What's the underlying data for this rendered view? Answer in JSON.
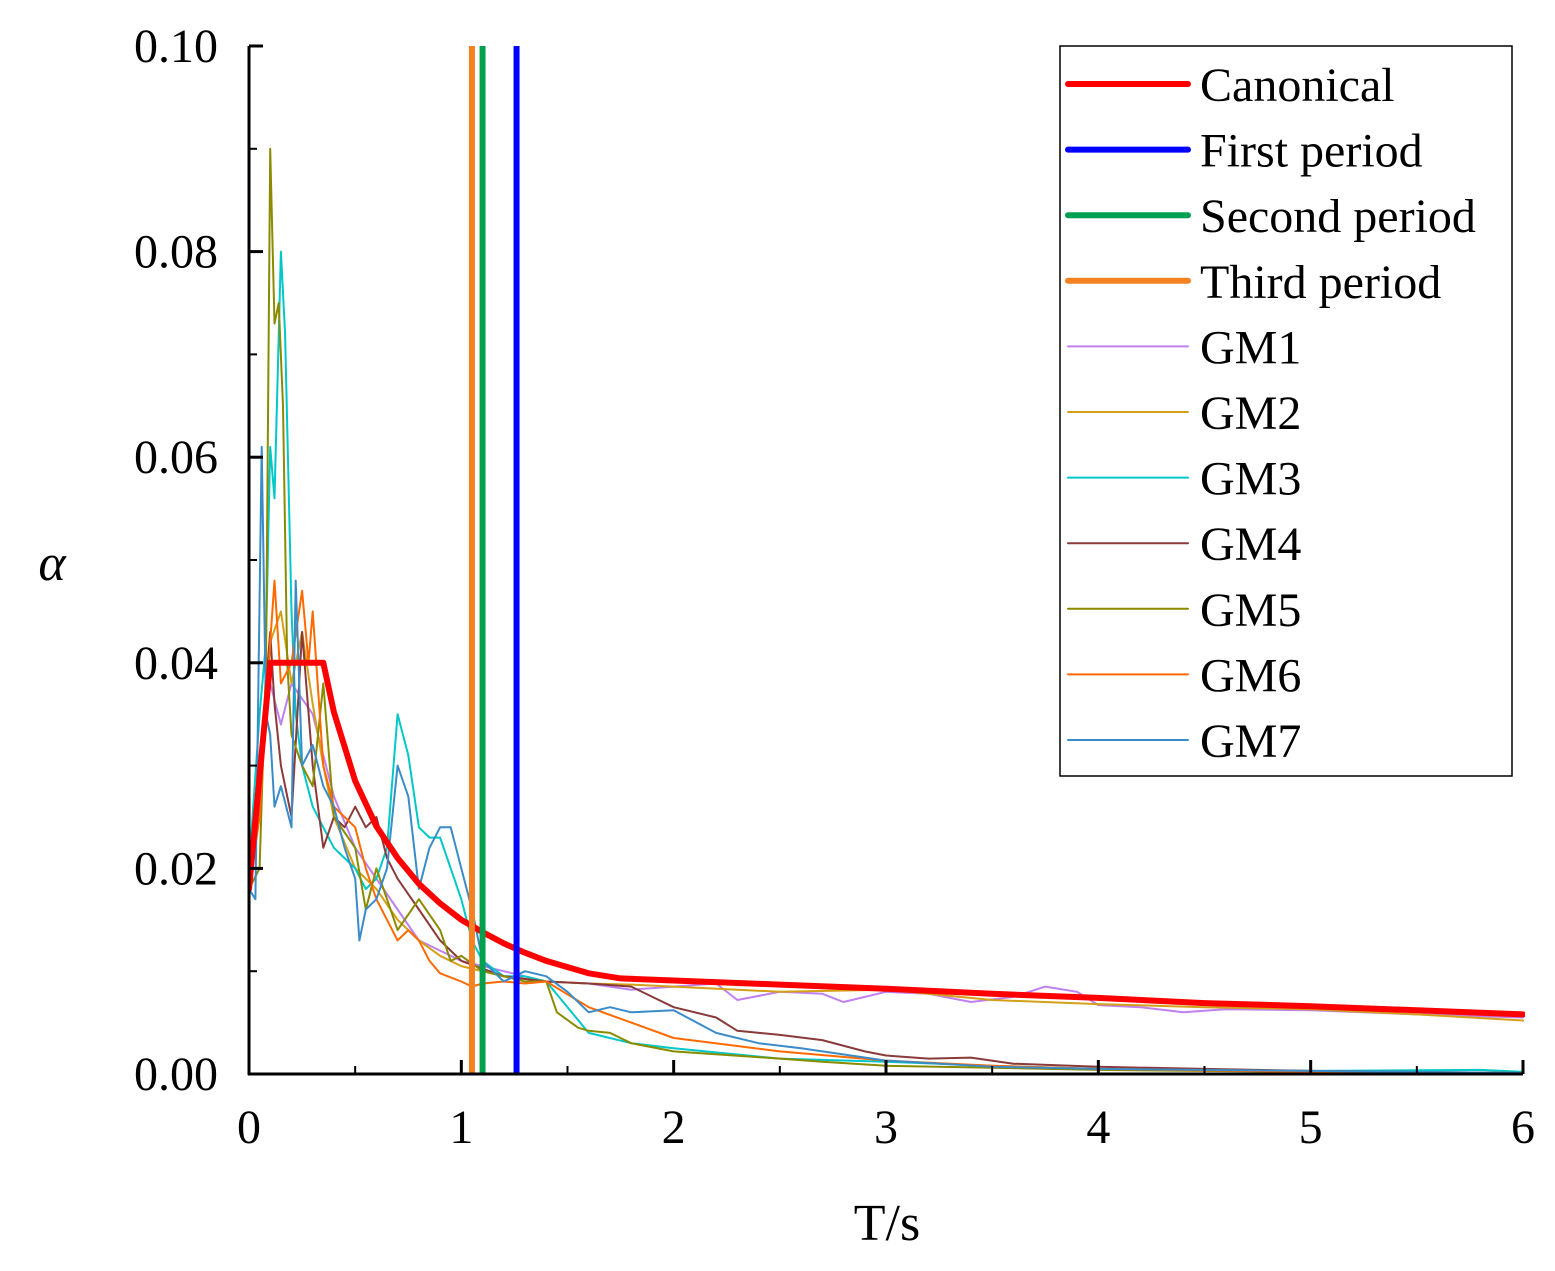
{
  "chart_data": {
    "type": "line",
    "xlabel": "T/s",
    "ylabel": "α",
    "xlim": [
      0,
      6
    ],
    "ylim": [
      0,
      0.1
    ],
    "x_ticks": [
      "0",
      "1",
      "2",
      "3",
      "4",
      "5",
      "6"
    ],
    "y_ticks": [
      "0.00",
      "0.02",
      "0.04",
      "0.06",
      "0.08",
      "0.10"
    ],
    "grid": false,
    "legend_position": "top-right",
    "series": [
      {
        "name": "Canonical",
        "color": "#ff0000",
        "width": 6,
        "points": [
          [
            0,
            0.018
          ],
          [
            0.1,
            0.04
          ],
          [
            0.35,
            0.04
          ],
          [
            0.4,
            0.0352
          ],
          [
            0.5,
            0.0285
          ],
          [
            0.6,
            0.0241
          ],
          [
            0.7,
            0.021
          ],
          [
            0.8,
            0.0185
          ],
          [
            0.9,
            0.0166
          ],
          [
            1.0,
            0.015
          ],
          [
            1.1,
            0.0138
          ],
          [
            1.2,
            0.0127
          ],
          [
            1.3,
            0.0118
          ],
          [
            1.4,
            0.011
          ],
          [
            1.5,
            0.0104
          ],
          [
            1.6,
            0.0098
          ],
          [
            1.75,
            0.0093
          ],
          [
            2,
            0.0091
          ],
          [
            2.5,
            0.0087
          ],
          [
            3,
            0.0083
          ],
          [
            3.5,
            0.0078
          ],
          [
            4,
            0.0074
          ],
          [
            4.5,
            0.0069
          ],
          [
            5,
            0.0066
          ],
          [
            5.5,
            0.0062
          ],
          [
            6,
            0.0058
          ]
        ]
      },
      {
        "name": "First period",
        "color": "#0000ff",
        "width": 6,
        "vline": 1.26
      },
      {
        "name": "Second period",
        "color": "#00a050",
        "width": 6,
        "vline": 1.1
      },
      {
        "name": "Third period",
        "color": "#f58220",
        "width": 6,
        "vline": 1.05
      },
      {
        "name": "GM1",
        "color": "#c080f0",
        "width": 2,
        "points": [
          [
            0,
            0.02
          ],
          [
            0.05,
            0.03
          ],
          [
            0.1,
            0.038
          ],
          [
            0.15,
            0.034
          ],
          [
            0.2,
            0.038
          ],
          [
            0.3,
            0.035
          ],
          [
            0.4,
            0.027
          ],
          [
            0.5,
            0.022
          ],
          [
            0.6,
            0.019
          ],
          [
            0.7,
            0.016
          ],
          [
            0.8,
            0.013
          ],
          [
            0.9,
            0.012
          ],
          [
            1.0,
            0.011
          ],
          [
            1.2,
            0.01
          ],
          [
            1.4,
            0.009
          ],
          [
            1.6,
            0.0088
          ],
          [
            1.8,
            0.0082
          ],
          [
            2,
            0.0085
          ],
          [
            2.2,
            0.0088
          ],
          [
            2.3,
            0.0072
          ],
          [
            2.5,
            0.008
          ],
          [
            2.7,
            0.0078
          ],
          [
            2.8,
            0.007
          ],
          [
            3,
            0.008
          ],
          [
            3.2,
            0.0078
          ],
          [
            3.4,
            0.007
          ],
          [
            3.6,
            0.0075
          ],
          [
            3.75,
            0.0085
          ],
          [
            3.9,
            0.008
          ],
          [
            4,
            0.0067
          ],
          [
            4.2,
            0.0065
          ],
          [
            4.4,
            0.006
          ],
          [
            4.6,
            0.0063
          ],
          [
            5,
            0.0062
          ],
          [
            5.5,
            0.0058
          ],
          [
            6,
            0.0055
          ]
        ]
      },
      {
        "name": "GM2",
        "color": "#d4a017",
        "width": 2,
        "points": [
          [
            0,
            0.02
          ],
          [
            0.05,
            0.028
          ],
          [
            0.1,
            0.042
          ],
          [
            0.15,
            0.045
          ],
          [
            0.2,
            0.038
          ],
          [
            0.25,
            0.043
          ],
          [
            0.3,
            0.036
          ],
          [
            0.35,
            0.03
          ],
          [
            0.4,
            0.025
          ],
          [
            0.5,
            0.02
          ],
          [
            0.6,
            0.018
          ],
          [
            0.7,
            0.015
          ],
          [
            0.8,
            0.013
          ],
          [
            0.9,
            0.0115
          ],
          [
            1.0,
            0.0105
          ],
          [
            1.2,
            0.0095
          ],
          [
            1.4,
            0.009
          ],
          [
            1.6,
            0.0088
          ],
          [
            1.8,
            0.0087
          ],
          [
            2,
            0.0085
          ],
          [
            2.5,
            0.008
          ],
          [
            3,
            0.0082
          ],
          [
            3.5,
            0.0072
          ],
          [
            4,
            0.0068
          ],
          [
            4.5,
            0.0065
          ],
          [
            5,
            0.0063
          ],
          [
            5.5,
            0.0058
          ],
          [
            6,
            0.0052
          ]
        ]
      },
      {
        "name": "GM3",
        "color": "#00c8c8",
        "width": 2,
        "points": [
          [
            0,
            0.02
          ],
          [
            0.05,
            0.035
          ],
          [
            0.08,
            0.042
          ],
          [
            0.1,
            0.061
          ],
          [
            0.12,
            0.056
          ],
          [
            0.15,
            0.08
          ],
          [
            0.17,
            0.072
          ],
          [
            0.2,
            0.045
          ],
          [
            0.22,
            0.035
          ],
          [
            0.25,
            0.03
          ],
          [
            0.3,
            0.026
          ],
          [
            0.35,
            0.024
          ],
          [
            0.4,
            0.022
          ],
          [
            0.45,
            0.021
          ],
          [
            0.5,
            0.02
          ],
          [
            0.55,
            0.018
          ],
          [
            0.6,
            0.019
          ],
          [
            0.65,
            0.022
          ],
          [
            0.7,
            0.035
          ],
          [
            0.75,
            0.031
          ],
          [
            0.8,
            0.024
          ],
          [
            0.85,
            0.023
          ],
          [
            0.9,
            0.023
          ],
          [
            1.0,
            0.017
          ],
          [
            1.05,
            0.013
          ],
          [
            1.1,
            0.011
          ],
          [
            1.2,
            0.0095
          ],
          [
            1.3,
            0.0095
          ],
          [
            1.4,
            0.009
          ],
          [
            1.5,
            0.0065
          ],
          [
            1.6,
            0.004
          ],
          [
            1.8,
            0.003
          ],
          [
            2,
            0.0025
          ],
          [
            2.5,
            0.0015
          ],
          [
            3,
            0.0012
          ],
          [
            3.5,
            0.0008
          ],
          [
            4,
            0.0005
          ],
          [
            5,
            0.0003
          ],
          [
            5.8,
            0.0004
          ],
          [
            6,
            0.0002
          ]
        ]
      },
      {
        "name": "GM4",
        "color": "#8b3a3a",
        "width": 2,
        "points": [
          [
            0,
            0.02
          ],
          [
            0.05,
            0.03
          ],
          [
            0.1,
            0.043
          ],
          [
            0.12,
            0.036
          ],
          [
            0.15,
            0.03
          ],
          [
            0.2,
            0.025
          ],
          [
            0.25,
            0.043
          ],
          [
            0.3,
            0.03
          ],
          [
            0.35,
            0.022
          ],
          [
            0.4,
            0.025
          ],
          [
            0.45,
            0.024
          ],
          [
            0.5,
            0.026
          ],
          [
            0.55,
            0.024
          ],
          [
            0.6,
            0.025
          ],
          [
            0.65,
            0.021
          ],
          [
            0.7,
            0.019
          ],
          [
            0.8,
            0.016
          ],
          [
            0.9,
            0.013
          ],
          [
            1.0,
            0.011
          ],
          [
            1.2,
            0.0095
          ],
          [
            1.4,
            0.009
          ],
          [
            1.6,
            0.0088
          ],
          [
            1.8,
            0.0085
          ],
          [
            1.9,
            0.0075
          ],
          [
            2,
            0.0065
          ],
          [
            2.2,
            0.0055
          ],
          [
            2.3,
            0.0042
          ],
          [
            2.5,
            0.0038
          ],
          [
            2.7,
            0.0033
          ],
          [
            2.9,
            0.0022
          ],
          [
            3,
            0.0018
          ],
          [
            3.2,
            0.0015
          ],
          [
            3.4,
            0.0016
          ],
          [
            3.6,
            0.001
          ],
          [
            4,
            0.0007
          ],
          [
            4.5,
            0.0005
          ],
          [
            5,
            0.0003
          ],
          [
            6,
            0.0001
          ]
        ]
      },
      {
        "name": "GM5",
        "color": "#8b8b00",
        "width": 2,
        "points": [
          [
            0,
            0.018
          ],
          [
            0.05,
            0.02
          ],
          [
            0.08,
            0.04
          ],
          [
            0.1,
            0.09
          ],
          [
            0.12,
            0.073
          ],
          [
            0.14,
            0.075
          ],
          [
            0.16,
            0.065
          ],
          [
            0.18,
            0.04
          ],
          [
            0.2,
            0.033
          ],
          [
            0.25,
            0.03
          ],
          [
            0.3,
            0.028
          ],
          [
            0.35,
            0.038
          ],
          [
            0.4,
            0.025
          ],
          [
            0.5,
            0.022
          ],
          [
            0.55,
            0.016
          ],
          [
            0.6,
            0.02
          ],
          [
            0.7,
            0.014
          ],
          [
            0.8,
            0.017
          ],
          [
            0.9,
            0.014
          ],
          [
            0.95,
            0.011
          ],
          [
            1.0,
            0.0115
          ],
          [
            1.1,
            0.01
          ],
          [
            1.2,
            0.0095
          ],
          [
            1.3,
            0.009
          ],
          [
            1.4,
            0.009
          ],
          [
            1.45,
            0.006
          ],
          [
            1.55,
            0.0045
          ],
          [
            1.6,
            0.0042
          ],
          [
            1.7,
            0.004
          ],
          [
            1.8,
            0.003
          ],
          [
            2,
            0.0022
          ],
          [
            2.5,
            0.0015
          ],
          [
            2.7,
            0.0012
          ],
          [
            3,
            0.0008
          ],
          [
            3.5,
            0.0006
          ],
          [
            4,
            0.0004
          ],
          [
            5,
            0.0002
          ],
          [
            6,
            0.0001
          ]
        ]
      },
      {
        "name": "GM6",
        "color": "#ff6a00",
        "width": 2,
        "points": [
          [
            0,
            0.018
          ],
          [
            0.05,
            0.025
          ],
          [
            0.08,
            0.035
          ],
          [
            0.1,
            0.042
          ],
          [
            0.12,
            0.048
          ],
          [
            0.15,
            0.038
          ],
          [
            0.2,
            0.04
          ],
          [
            0.25,
            0.047
          ],
          [
            0.28,
            0.04
          ],
          [
            0.3,
            0.045
          ],
          [
            0.35,
            0.03
          ],
          [
            0.4,
            0.026
          ],
          [
            0.45,
            0.025
          ],
          [
            0.5,
            0.024
          ],
          [
            0.55,
            0.02
          ],
          [
            0.6,
            0.017
          ],
          [
            0.65,
            0.015
          ],
          [
            0.7,
            0.013
          ],
          [
            0.75,
            0.014
          ],
          [
            0.8,
            0.013
          ],
          [
            0.85,
            0.011
          ],
          [
            0.9,
            0.0098
          ],
          [
            1.0,
            0.009
          ],
          [
            1.05,
            0.0085
          ],
          [
            1.1,
            0.0088
          ],
          [
            1.2,
            0.009
          ],
          [
            1.3,
            0.0088
          ],
          [
            1.4,
            0.009
          ],
          [
            1.6,
            0.0065
          ],
          [
            1.8,
            0.005
          ],
          [
            2,
            0.0035
          ],
          [
            2.5,
            0.0022
          ],
          [
            3,
            0.0013
          ],
          [
            3.5,
            0.0008
          ],
          [
            4,
            0.0005
          ],
          [
            5,
            0.0002
          ],
          [
            6,
            0.0001
          ]
        ]
      },
      {
        "name": "GM7",
        "color": "#3a8cc8",
        "width": 2,
        "points": [
          [
            0,
            0.018
          ],
          [
            0.03,
            0.017
          ],
          [
            0.06,
            0.061
          ],
          [
            0.08,
            0.035
          ],
          [
            0.1,
            0.033
          ],
          [
            0.12,
            0.026
          ],
          [
            0.15,
            0.028
          ],
          [
            0.2,
            0.024
          ],
          [
            0.22,
            0.048
          ],
          [
            0.25,
            0.03
          ],
          [
            0.3,
            0.032
          ],
          [
            0.35,
            0.028
          ],
          [
            0.4,
            0.026
          ],
          [
            0.45,
            0.022
          ],
          [
            0.5,
            0.019
          ],
          [
            0.52,
            0.013
          ],
          [
            0.55,
            0.016
          ],
          [
            0.6,
            0.017
          ],
          [
            0.65,
            0.02
          ],
          [
            0.7,
            0.03
          ],
          [
            0.75,
            0.027
          ],
          [
            0.8,
            0.018
          ],
          [
            0.85,
            0.022
          ],
          [
            0.9,
            0.024
          ],
          [
            0.95,
            0.024
          ],
          [
            1.0,
            0.02
          ],
          [
            1.05,
            0.016
          ],
          [
            1.1,
            0.011
          ],
          [
            1.2,
            0.009
          ],
          [
            1.3,
            0.01
          ],
          [
            1.4,
            0.0095
          ],
          [
            1.5,
            0.008
          ],
          [
            1.6,
            0.006
          ],
          [
            1.7,
            0.0065
          ],
          [
            1.8,
            0.006
          ],
          [
            2,
            0.0062
          ],
          [
            2.2,
            0.004
          ],
          [
            2.4,
            0.003
          ],
          [
            2.6,
            0.0025
          ],
          [
            3,
            0.0013
          ],
          [
            3.5,
            0.0007
          ],
          [
            4,
            0.0005
          ],
          [
            5,
            0.0003
          ],
          [
            6,
            0.0001
          ]
        ]
      }
    ]
  }
}
